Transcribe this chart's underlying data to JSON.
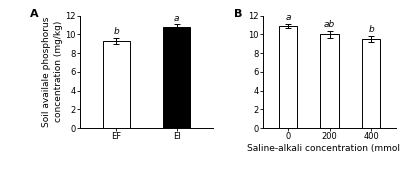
{
  "panel_A": {
    "categories": [
      "EF",
      "EI"
    ],
    "values": [
      9.3,
      10.8
    ],
    "errors": [
      0.3,
      0.25
    ],
    "bar_colors": [
      "white",
      "black"
    ],
    "bar_edgecolors": [
      "black",
      "black"
    ],
    "sig_labels": [
      "b",
      "a"
    ],
    "ylabel": "Soil availale phosphorus\nconcentration (mg/kg)",
    "ylim": [
      0,
      12
    ],
    "yticks": [
      0,
      2,
      4,
      6,
      8,
      10,
      12
    ],
    "panel_label": "A"
  },
  "panel_B": {
    "categories": [
      "0",
      "200",
      "400"
    ],
    "values": [
      10.9,
      10.0,
      9.5
    ],
    "errors": [
      0.2,
      0.35,
      0.3
    ],
    "bar_colors": [
      "white",
      "white",
      "white"
    ],
    "bar_edgecolors": [
      "black",
      "black",
      "black"
    ],
    "sig_labels": [
      "a",
      "ab",
      "b"
    ],
    "xlabel": "Saline-alkali concentration (mmol/L)",
    "ylim": [
      0,
      12
    ],
    "yticks": [
      0,
      2,
      4,
      6,
      8,
      10,
      12
    ],
    "panel_label": "B"
  },
  "font_size": 6.5,
  "tick_font_size": 6,
  "panel_label_font_size": 8,
  "bar_width": 0.45
}
